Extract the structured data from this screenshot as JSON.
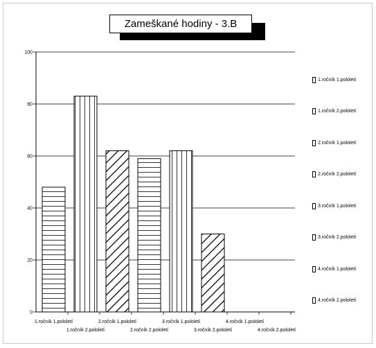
{
  "chart_data": {
    "type": "bar",
    "title": "Zameškané hodiny - 3.B",
    "xlabel": "",
    "ylabel": "",
    "ylim": [
      0,
      100
    ],
    "yticks": [
      0,
      20,
      40,
      60,
      80,
      100
    ],
    "grid": true,
    "legend_position": "right",
    "categories": [
      "1.ročník 1.pololetí",
      "1.ročník 2.pololetí",
      "2.ročník 1.pololetí",
      "2.ročník 2.pololetí",
      "3.ročník 1.pololetí",
      "3.ročník 2.pololetí",
      "4.ročník 1.pololetí",
      "4.ročník 2.pololetí"
    ],
    "values": [
      48,
      83,
      62,
      59,
      62,
      30,
      null,
      null
    ],
    "patterns": [
      "horizontal",
      "vertical",
      "diagonal",
      "horizontal",
      "vertical",
      "diagonal",
      "horizontal",
      "vertical"
    ],
    "legend": [
      "1.ročník 1.pololetí",
      "1.ročník 2.pololetí",
      "2.ročník 1.pololetí",
      "2.ročník 2.pololetí",
      "3.ročník 1.pololetí",
      "3.ročník 2.pololetí",
      "4.ročník 1.pololetí",
      "4.ročník 2.pololetí"
    ]
  }
}
